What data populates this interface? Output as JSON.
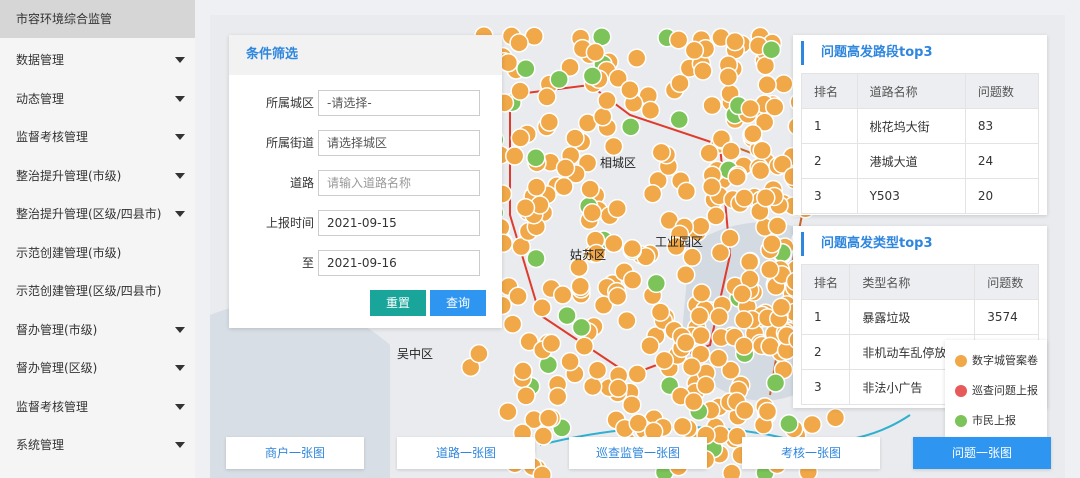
{
  "sidebar": {
    "items": [
      "市容环境综合监管",
      "数据管理",
      "动态管理",
      "监督考核管理",
      "整治提升管理(市级)",
      "整治提升管理(区级/四县市)",
      "示范创建管理(市级)",
      "示范创建管理(区级/四县市)",
      "督办管理(市级)",
      "督办管理(区级)",
      "监督考核管理",
      "系统管理"
    ]
  },
  "filter": {
    "title": "条件筛选",
    "district_label": "所属城区",
    "district_value": "-请选择-",
    "street_label": "所属街道",
    "street_value": "请选择城区",
    "road_label": "道路",
    "road_placeholder": "请输入道路名称",
    "date_from_label": "上报时间",
    "date_from": "2021-09-15",
    "date_to_label": "至",
    "date_to": "2021-09-16",
    "reset": "重置",
    "search": "查询"
  },
  "road_table": {
    "title": "问题高发路段top3",
    "headers": [
      "排名",
      "道路名称",
      "问题数"
    ],
    "rows": [
      [
        "1",
        "桃花坞大街",
        "83"
      ],
      [
        "2",
        "港城大道",
        "24"
      ],
      [
        "3",
        "Y503",
        "20"
      ]
    ]
  },
  "type_table": {
    "title": "问题高发类型top3",
    "headers": [
      "排名",
      "类型名称",
      "问题数"
    ],
    "rows": [
      [
        "1",
        "暴露垃圾",
        "3574"
      ],
      [
        "2",
        "非机动车乱停放"
      ],
      [
        "3",
        "非法小广告"
      ]
    ]
  },
  "legend": {
    "items": [
      "数字城管案卷",
      "巡查问题上报",
      "市民上报"
    ]
  },
  "map_labels": [
    "相城区",
    "姑苏区",
    "工业园区",
    "吴中区"
  ],
  "tabs": [
    "商户一张图",
    "道路一张图",
    "巡查监管一张图",
    "考核一张图",
    "问题一张图"
  ]
}
